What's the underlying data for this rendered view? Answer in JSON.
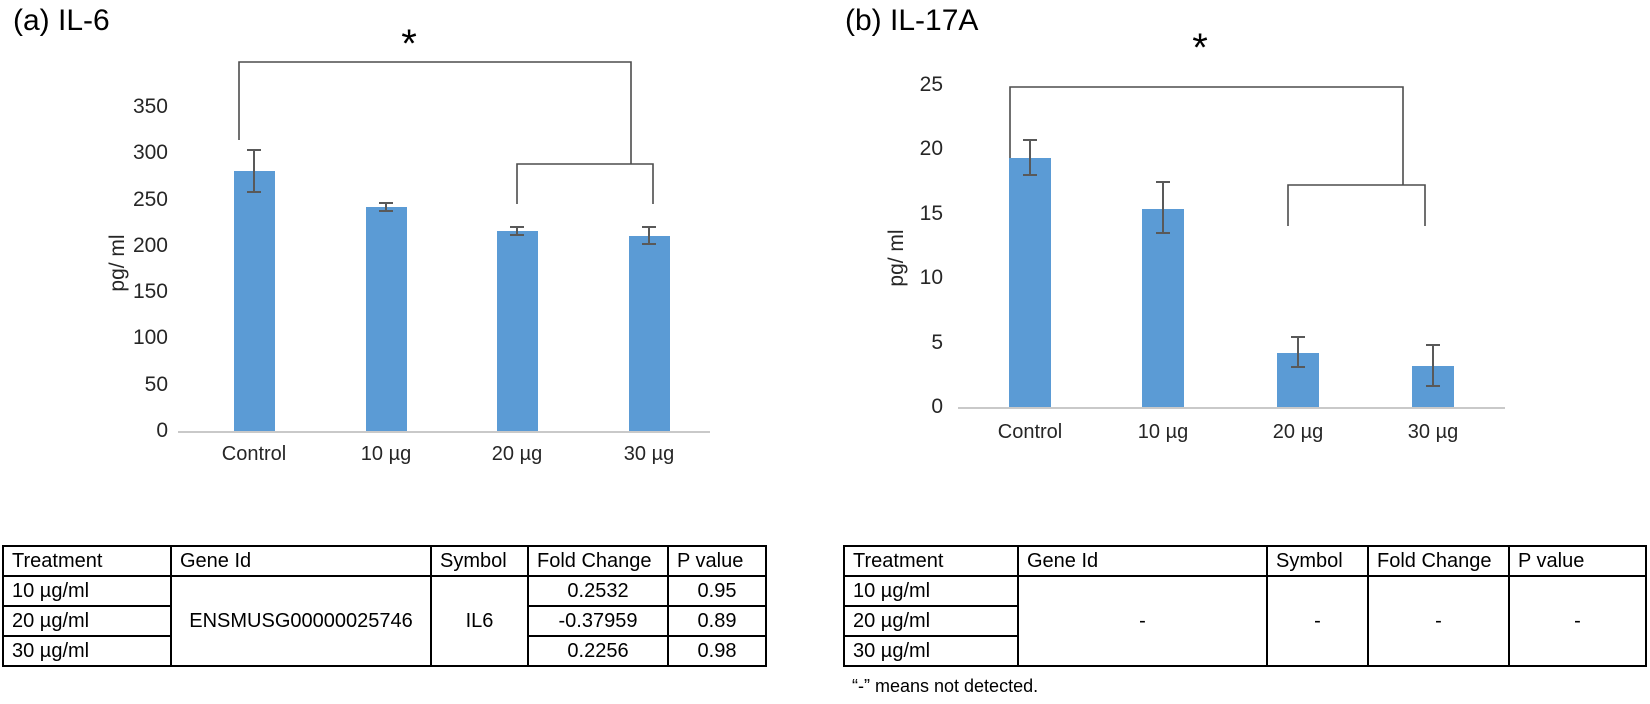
{
  "chart_data": [
    {
      "type": "bar",
      "panel_label": "(a) IL-6",
      "significance_label": "*",
      "ylabel": "pg/ ml",
      "categories": [
        "Control",
        "10 µg",
        "20 µg",
        "30 µg"
      ],
      "values": [
        281,
        242,
        216,
        211
      ],
      "error_low": [
        258,
        238,
        212,
        202
      ],
      "error_high": [
        304,
        246,
        220,
        220
      ],
      "yticks": [
        0,
        50,
        100,
        150,
        200,
        250,
        300,
        350
      ],
      "ylim": [
        0,
        400
      ],
      "bar_color": "#5B9BD5",
      "legend": "none",
      "grid": "off"
    },
    {
      "type": "bar",
      "panel_label": "(b) IL-17A",
      "significance_label": "*",
      "ylabel": "pg/ ml",
      "categories": [
        "Control",
        "10 µg",
        "20 µg",
        "30 µg"
      ],
      "values": [
        19.3,
        15.4,
        4.2,
        3.2
      ],
      "error_low": [
        18.0,
        13.5,
        3.1,
        1.6
      ],
      "error_high": [
        20.7,
        17.5,
        5.4,
        4.8
      ],
      "yticks": [
        0,
        5,
        10,
        15,
        20,
        25
      ],
      "ylim": [
        0,
        25
      ],
      "bar_color": "#5B9BD5",
      "legend": "none",
      "grid": "off"
    }
  ],
  "tables": {
    "headers": [
      "Treatment",
      "Gene Id",
      "Symbol",
      "Fold Change",
      "P value"
    ],
    "il6": {
      "treatments": [
        "10 µg/ml",
        "20 µg/ml",
        "30 µg/ml"
      ],
      "gene_id": "ENSMUSG00000025746",
      "symbol": "IL6",
      "fold_change": [
        "0.2532",
        "-0.37959",
        "0.2256"
      ],
      "p_value": [
        "0.95",
        "0.89",
        "0.98"
      ]
    },
    "il17a": {
      "treatments": [
        "10 µg/ml",
        "20 µg/ml",
        "30 µg/ml"
      ],
      "gene_id": "-",
      "symbol": "-",
      "fold_change": "-",
      "p_value": "-"
    },
    "footnote": "“-” means not detected."
  },
  "colors": {
    "bar": "#5B9BD5",
    "error_bar": "#595959",
    "axis_line": "#c9c9c9",
    "bracket": "#4d4d4d"
  }
}
